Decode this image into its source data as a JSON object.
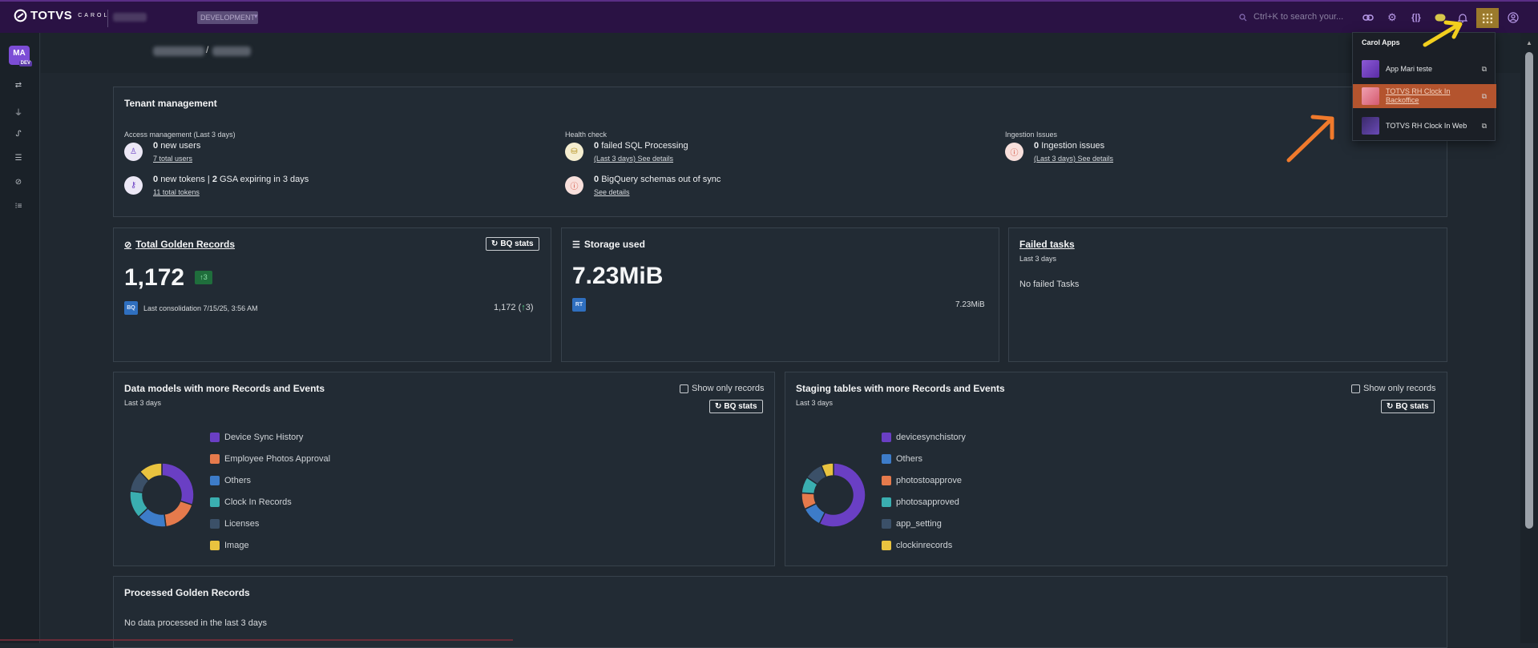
{
  "topbar": {
    "logo_text": "TOTVS",
    "logo_sub": "CAROL",
    "env_label": "DEVELOPMENT",
    "search_placeholder": "Ctrl+K to search your..."
  },
  "sidebar": {
    "avatar_initials": "MA",
    "avatar_badge": "DEV"
  },
  "tenant": {
    "title": "Tenant management",
    "access_label": "Access management (Last 3 days)",
    "new_users_count": "0",
    "new_users_text": "new users",
    "total_users": "7 total users",
    "new_tokens_count": "0",
    "new_tokens_text": "new tokens |",
    "gsa_count": "2",
    "gsa_text": "GSA expiring in 3 days",
    "total_tokens": "11 total tokens",
    "health_label": "Health check",
    "failed_sql_count": "0",
    "failed_sql_text": "failed SQL Processing",
    "failed_sql_link": "(Last 3 days) See details",
    "bq_count": "0",
    "bq_text": "BigQuery schemas out of sync",
    "bq_link": "See details",
    "ingestion_label": "Ingestion Issues",
    "ingestion_count": "0",
    "ingestion_text": "Ingestion issues",
    "ingestion_link": "(Last 3 days) See details"
  },
  "golden": {
    "title": "Total Golden Records",
    "bq_button": "BQ stats",
    "value": "1,172",
    "delta": "3",
    "tag": "BQ",
    "last_consolidation": "Last consolidation 7/15/25, 3:56 AM",
    "right_value": "1,172 (",
    "right_delta": "3",
    "right_close": ")"
  },
  "storage": {
    "title": "Storage used",
    "value": "7.23MiB",
    "tag": "RT",
    "right_value": "7.23MiB"
  },
  "failed": {
    "title": "Failed tasks",
    "subtitle": "Last 3 days",
    "empty": "No failed Tasks"
  },
  "data_models": {
    "title": "Data models with more Records and Events",
    "subtitle": "Last 3 days",
    "checkbox_label": "Show only records",
    "bq_button": "BQ stats"
  },
  "staging": {
    "title": "Staging tables with more Records and Events",
    "subtitle": "Last 3 days",
    "checkbox_label": "Show only records",
    "bq_button": "BQ stats"
  },
  "processed": {
    "title": "Processed Golden Records",
    "empty": "No data processed in the last 3 days"
  },
  "carol_apps": {
    "title": "Carol Apps",
    "items": [
      {
        "label": "App Mari teste"
      },
      {
        "label": "TOTVS RH Clock In Backoffice"
      },
      {
        "label": "TOTVS RH Clock In Web"
      }
    ]
  },
  "chart_data": [
    {
      "type": "pie",
      "categories": [
        "Device Sync History",
        "Employee Photos Approval",
        "Others",
        "Clock In Records",
        "Licenses",
        "Image"
      ],
      "values": [
        30,
        18,
        15,
        14,
        11,
        12
      ],
      "colors": [
        "#6a3fc4",
        "#e57a4c",
        "#3d7cc9",
        "#3aaeb0",
        "#3b5068",
        "#e9c33f"
      ],
      "donut": true,
      "legend": "right"
    },
    {
      "type": "pie",
      "categories": [
        "devicesynchistory",
        "Others",
        "photostoapprove",
        "photosapproved",
        "app_setting",
        "clockinrecords"
      ],
      "values": [
        55,
        10,
        8,
        8,
        9,
        6
      ],
      "colors": [
        "#6a3fc4",
        "#3d7cc9",
        "#e57a4c",
        "#3aaeb0",
        "#3b5068",
        "#e9c33f"
      ],
      "donut": true,
      "legend": "right"
    }
  ]
}
